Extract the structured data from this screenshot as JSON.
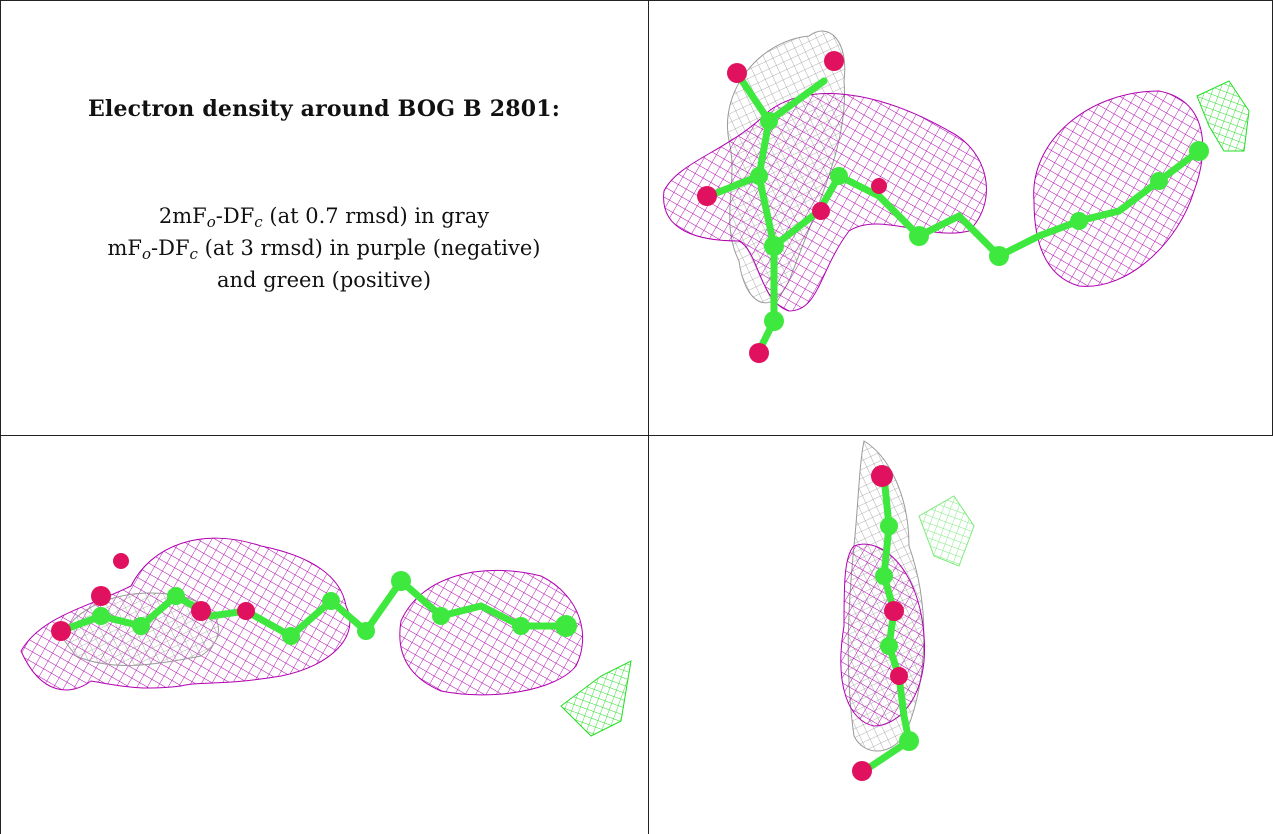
{
  "caption": {
    "heading": "Electron density around BOG B 2801:",
    "line1_prefix": "2mF",
    "line1_sub1": "o",
    "line1_mid": "-DF",
    "line1_sub2": "c",
    "line1_suffix": " (at 0.7 rmsd) in gray",
    "line2_prefix": "mF",
    "line2_sub1": "o",
    "line2_mid": "-DF",
    "line2_sub2": "c",
    "line2_suffix": " (at 3 rmsd) in purple (negative)",
    "line3": "and green (positive)"
  },
  "colors": {
    "gray_mesh": "#9a9a9a",
    "purple_mesh": "#b000b0",
    "green_mesh": "#22dd22",
    "carbon": "#3fe83f",
    "oxygen": "#e0115f",
    "border": "#222222"
  },
  "panels": [
    {
      "name": "view-top-right",
      "description": "BOG ligand with density meshes, view 1"
    },
    {
      "name": "view-bottom-left",
      "description": "BOG ligand with density meshes, view 2"
    },
    {
      "name": "view-bottom-right",
      "description": "BOG ligand with density meshes, view 3"
    }
  ]
}
